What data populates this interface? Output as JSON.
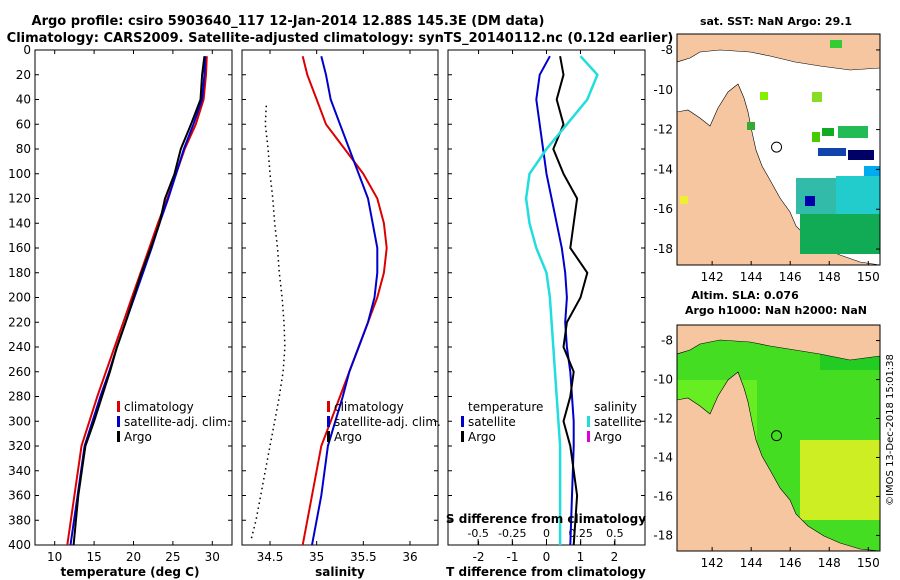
{
  "header": {
    "line1": "Argo profile: csiro 5903640_117 12-Jan-2014 12.88S 145.3E (DM data)",
    "line2": "Climatology: CARS2009. Satellite-adjusted climatology: synTS_20140112.nc (0.12d earlier)"
  },
  "colors": {
    "clim": "#dd0000",
    "sat": "#0000cc",
    "argo": "#000000",
    "s_diff": "#22dddd",
    "s_argo": "#dd00dd",
    "land": "#f5c6a0"
  },
  "side_labels": {
    "sst_title": "sat. SST: NaN Argo: 29.1",
    "sla_title1": "Altim. SLA: 0.076",
    "sla_title2": "Argo h1000: NaN h2000: NaN",
    "credit": "©IMOS 13-Dec-2018 15:01:38"
  },
  "chart_data": [
    {
      "type": "line",
      "id": "temperature",
      "xlabel": "temperature (deg C)",
      "ylabel": "depth",
      "xlim": [
        7.5,
        32.5
      ],
      "ylim": [
        0,
        400
      ],
      "y_reversed": true,
      "xticks": [
        10,
        15,
        20,
        25,
        30
      ],
      "xtick_labels": [
        "10",
        "15",
        "20",
        "25",
        "30"
      ],
      "yticks": [
        0,
        20,
        40,
        60,
        80,
        100,
        120,
        140,
        160,
        180,
        200,
        220,
        240,
        260,
        280,
        300,
        320,
        340,
        360,
        380,
        400
      ],
      "legend": [
        "climatology",
        "satellite-adj. clim.",
        "Argo"
      ],
      "legend_position": "bottom-right",
      "series": [
        {
          "name": "climatology",
          "color_key": "clim",
          "x": [
            29.3,
            29.2,
            28.9,
            27.9,
            26.5,
            25.4,
            24.3,
            23.1,
            22.0,
            20.9,
            19.8,
            18.7,
            17.6,
            16.5,
            15.4,
            14.4,
            13.4,
            12.5,
            11.6
          ],
          "y": [
            5,
            20,
            40,
            60,
            80,
            100,
            120,
            140,
            160,
            180,
            200,
            220,
            240,
            260,
            280,
            300,
            320,
            360,
            400
          ]
        },
        {
          "name": "satellite-adj. clim.",
          "color_key": "sat",
          "x": [
            29.1,
            29.0,
            28.7,
            27.6,
            26.4,
            25.4,
            24.4,
            23.3,
            22.3,
            21.2,
            20.1,
            19.0,
            17.9,
            16.9,
            15.8,
            14.8,
            13.8,
            12.9,
            12.0
          ],
          "y": [
            5,
            20,
            40,
            60,
            80,
            100,
            120,
            140,
            160,
            180,
            200,
            220,
            240,
            260,
            280,
            300,
            320,
            360,
            400
          ]
        },
        {
          "name": "Argo",
          "color_key": "argo",
          "x": [
            29.0,
            28.7,
            28.5,
            27.3,
            26.0,
            25.2,
            24.0,
            23.3,
            22.2,
            21.0,
            20.0,
            19.0,
            17.9,
            17.0,
            16.0,
            15.0,
            13.9,
            13.0,
            12.4
          ],
          "y": [
            5,
            20,
            40,
            60,
            80,
            100,
            120,
            140,
            160,
            180,
            200,
            220,
            240,
            260,
            280,
            300,
            320,
            360,
            400
          ]
        }
      ]
    },
    {
      "type": "line",
      "id": "salinity",
      "xlabel": "salinity",
      "xlim": [
        34.2,
        36.3
      ],
      "ylim": [
        0,
        400
      ],
      "y_reversed": true,
      "xticks": [
        34.5,
        35,
        35.5,
        36
      ],
      "xtick_labels": [
        "34.5",
        "35",
        "35.5",
        "36"
      ],
      "legend": [
        "climatology",
        "satellite-adj. clim.",
        "Argo"
      ],
      "legend_position": "bottom-right",
      "series": [
        {
          "name": "climatology",
          "color_key": "clim",
          "x": [
            34.85,
            34.9,
            35.0,
            35.1,
            35.3,
            35.5,
            35.65,
            35.72,
            35.75,
            35.72,
            35.65,
            35.55,
            35.45,
            35.35,
            35.25,
            35.15,
            35.05,
            34.95,
            34.85
          ],
          "y": [
            5,
            20,
            40,
            60,
            80,
            100,
            120,
            140,
            160,
            180,
            200,
            220,
            240,
            260,
            280,
            300,
            320,
            360,
            400
          ]
        },
        {
          "name": "satellite-adj. clim.",
          "color_key": "sat",
          "x": [
            35.05,
            35.1,
            35.15,
            35.25,
            35.35,
            35.45,
            35.55,
            35.6,
            35.65,
            35.65,
            35.62,
            35.55,
            35.45,
            35.35,
            35.28,
            35.2,
            35.12,
            35.05,
            34.95
          ],
          "y": [
            5,
            20,
            40,
            60,
            80,
            100,
            120,
            140,
            160,
            180,
            200,
            220,
            240,
            260,
            280,
            300,
            320,
            360,
            400
          ]
        },
        {
          "name": "Argo",
          "color_key": "argo",
          "x": [
            34.46,
            34.45,
            34.48,
            34.5,
            34.53,
            34.55,
            34.58,
            34.6,
            34.63,
            34.65,
            34.66,
            34.64,
            34.6,
            34.55,
            34.5,
            34.45,
            34.4,
            34.35,
            34.3
          ],
          "y": [
            45,
            60,
            80,
            100,
            120,
            140,
            160,
            180,
            200,
            220,
            240,
            260,
            280,
            300,
            320,
            340,
            360,
            380,
            395
          ]
        }
      ]
    },
    {
      "type": "line",
      "id": "differences",
      "xlabel": "T difference from climatology",
      "xlabel_top": "S difference from climatology",
      "xlim": [
        -2.9,
        2.9
      ],
      "ylim": [
        0,
        400
      ],
      "y_reversed": true,
      "xticks": [
        -2,
        -1,
        0,
        1,
        2
      ],
      "xtick_labels": [
        "-2",
        "-1",
        "0",
        "1",
        "2"
      ],
      "sticks": [
        -0.5,
        -0.25,
        0,
        0.25,
        0.5
      ],
      "stick_labels": [
        "-0.5",
        "-0.25",
        "0",
        "0.25",
        "0.5"
      ],
      "legend_left_title": "temperature",
      "legend_left": [
        "satellite",
        "Argo"
      ],
      "legend_right_title": "salinity",
      "legend_right": [
        "satellite",
        "Argo"
      ],
      "series": [
        {
          "name": "T satellite",
          "color_key": "sat",
          "x": [
            0.1,
            -0.2,
            -0.3,
            -0.2,
            -0.1,
            0.0,
            0.15,
            0.3,
            0.45,
            0.55,
            0.6,
            0.55,
            0.6,
            0.7,
            0.75,
            0.8,
            0.8,
            0.75,
            0.7
          ],
          "y": [
            5,
            20,
            40,
            60,
            80,
            100,
            120,
            140,
            160,
            180,
            200,
            220,
            240,
            260,
            280,
            300,
            320,
            360,
            400
          ]
        },
        {
          "name": "T Argo",
          "color_key": "argo",
          "x": [
            0.4,
            0.5,
            0.3,
            0.5,
            0.2,
            0.5,
            0.9,
            0.8,
            0.7,
            1.2,
            1.0,
            0.6,
            0.5,
            0.8,
            0.7,
            0.5,
            0.7,
            0.9,
            0.8
          ],
          "y": [
            5,
            20,
            40,
            60,
            80,
            100,
            120,
            140,
            160,
            180,
            200,
            220,
            240,
            260,
            280,
            300,
            320,
            360,
            400
          ]
        },
        {
          "name": "S satellite",
          "color_key": "s_diff",
          "x": [
            1.0,
            1.5,
            1.2,
            0.6,
            0.0,
            -0.5,
            -0.6,
            -0.5,
            -0.3,
            0.0,
            0.1,
            0.15,
            0.2,
            0.25,
            0.3,
            0.35,
            0.4,
            0.4,
            0.4
          ],
          "y": [
            5,
            20,
            40,
            60,
            80,
            100,
            120,
            140,
            160,
            180,
            200,
            220,
            240,
            260,
            280,
            300,
            320,
            360,
            400
          ]
        }
      ]
    },
    {
      "type": "heatmap",
      "id": "sst_map",
      "title": "sat. SST: NaN Argo: 29.1",
      "xlim": [
        140.2,
        150.6
      ],
      "ylim": [
        -18.8,
        -7.2
      ],
      "xticks": [
        142,
        144,
        146,
        148,
        150
      ],
      "xtick_labels": [
        "142",
        "144",
        "146",
        "148",
        "150"
      ],
      "yticks": [
        -8,
        -10,
        -12,
        -14,
        -16,
        -18
      ],
      "ytick_labels": [
        "-8",
        "-10",
        "-12",
        "-14",
        "-16",
        "-18"
      ],
      "argo_position": [
        145.3,
        -12.88
      ]
    },
    {
      "type": "heatmap",
      "id": "sla_map",
      "title": "Altim. SLA: 0.076",
      "xlim": [
        140.2,
        150.6
      ],
      "ylim": [
        -18.8,
        -7.2
      ],
      "xticks": [
        142,
        144,
        146,
        148,
        150
      ],
      "xtick_labels": [
        "142",
        "144",
        "146",
        "148",
        "150"
      ],
      "yticks": [
        -8,
        -10,
        -12,
        -14,
        -16,
        -18
      ],
      "ytick_labels": [
        "-8",
        "-10",
        "-12",
        "-14",
        "-16",
        "-18"
      ],
      "argo_position": [
        145.3,
        -12.88
      ]
    }
  ]
}
